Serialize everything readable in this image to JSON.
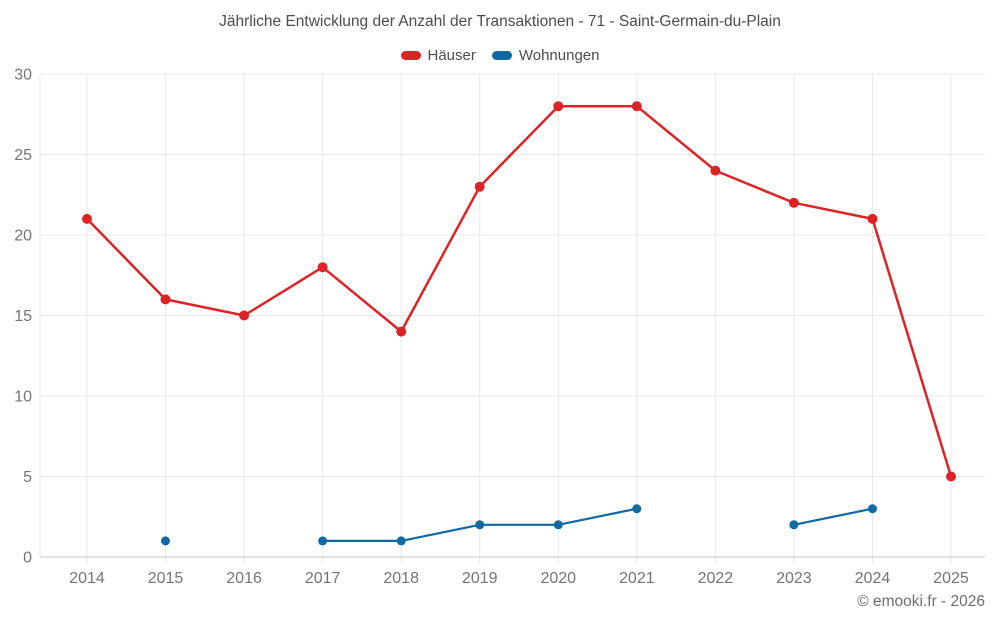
{
  "page": {
    "title": "Jährliche Entwicklung der Anzahl der Transaktionen - 71 - Saint-Germain-du-Plain",
    "footer": "© emooki.fr - 2026"
  },
  "colors": {
    "grid": "#e8e8e8",
    "axis_line": "#c4c4c4",
    "tick_label": "#757575",
    "title_text": "#4c4c4c",
    "footer_text": "#6e6e6e",
    "series_red": "#de2327",
    "series_blue": "#1069a2"
  },
  "chart_data": {
    "type": "line",
    "title": "Jährliche Entwicklung der Anzahl der Transaktionen - 71 - Saint-Germain-du-Plain",
    "categories": [
      "2014",
      "2015",
      "2016",
      "2017",
      "2018",
      "2019",
      "2020",
      "2021",
      "2022",
      "2023",
      "2024",
      "2025"
    ],
    "series": [
      {
        "name": "Häuser",
        "color": "#de2327",
        "values": [
          21,
          16,
          15,
          18,
          14,
          23,
          28,
          28,
          24,
          22,
          21,
          5
        ],
        "line_width": 2.5,
        "point_radius": 5
      },
      {
        "name": "Wohnungen",
        "color": "#1069a2",
        "values": [
          null,
          1,
          null,
          1,
          1,
          2,
          2,
          3,
          null,
          2,
          3,
          null
        ],
        "line_width": 2.2,
        "point_radius": 4.5
      }
    ],
    "xlabel": "",
    "ylabel": "",
    "ylim": [
      0,
      30
    ],
    "yticks": [
      0,
      5,
      10,
      15,
      20,
      25,
      30
    ],
    "grid": true,
    "legend_position": "top"
  }
}
